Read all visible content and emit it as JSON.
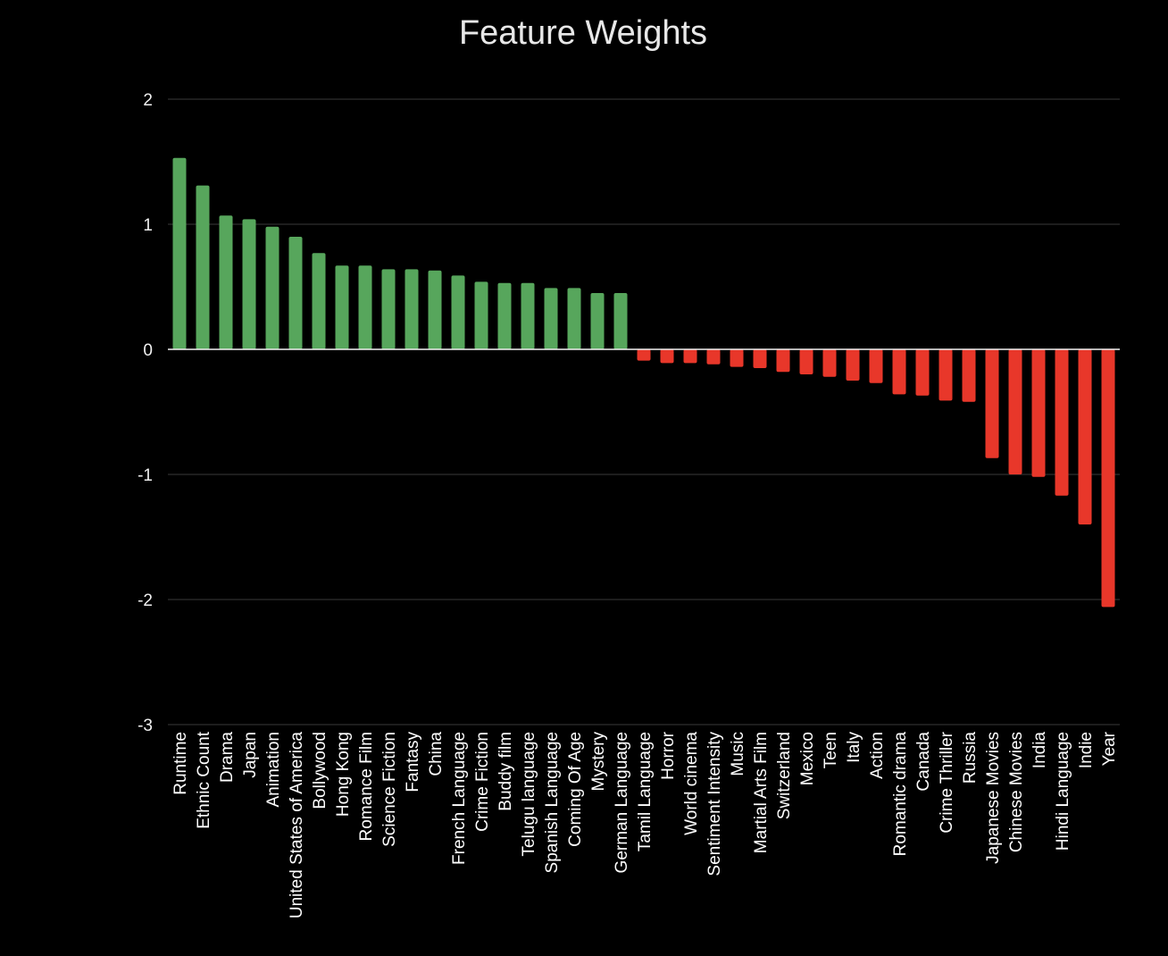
{
  "chart_data": {
    "type": "bar",
    "title": "Feature Weights",
    "xlabel": "",
    "ylabel": "",
    "ylim": [
      -3,
      2
    ],
    "yticks": [
      2,
      1,
      0,
      -1,
      -2,
      -3
    ],
    "grid": true,
    "legend": "none",
    "colors": {
      "positive": "#57a65c",
      "negative": "#e8372a",
      "background": "#000000",
      "grid": "#3a3a3a",
      "zero_line": "#f2f2f2",
      "text": "#ffffff"
    },
    "categories": [
      "Runtime",
      "Ethnic Count",
      "Drama",
      "Japan",
      "Animation",
      "United States of America",
      "Bollywood",
      "Hong Kong",
      "Romance Film",
      "Science Fiction",
      "Fantasy",
      "China",
      "French Language",
      "Crime Fiction",
      "Buddy film",
      "Telugu language",
      "Spanish Language",
      "Coming Of Age",
      "Mystery",
      "German Language",
      "Tamil Language",
      "Horror",
      "World cinema",
      "Sentiment Intensity",
      "Music",
      "Martial Arts Film",
      "Switzerland",
      "Mexico",
      "Teen",
      "Italy",
      "Action",
      "Romantic drama",
      "Canada",
      "Crime Thriller",
      "Russia",
      "Japanese Movies",
      "Chinese Movies",
      "India",
      "Hindi Language",
      "Indie",
      "Year"
    ],
    "values": [
      1.53,
      1.31,
      1.07,
      1.04,
      0.98,
      0.9,
      0.77,
      0.67,
      0.67,
      0.64,
      0.64,
      0.63,
      0.59,
      0.54,
      0.53,
      0.53,
      0.49,
      0.49,
      0.45,
      0.45,
      -0.09,
      -0.11,
      -0.11,
      -0.12,
      -0.14,
      -0.15,
      -0.18,
      -0.2,
      -0.22,
      -0.25,
      -0.27,
      -0.36,
      -0.37,
      -0.41,
      -0.42,
      -0.87,
      -1.0,
      -1.02,
      -1.17,
      -1.4,
      -2.06
    ]
  }
}
